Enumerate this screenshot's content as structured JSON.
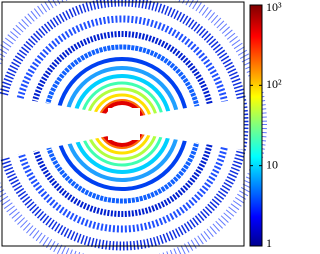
{
  "chart_data": {
    "type": "heatmap",
    "colormap": "jet",
    "colorscale": "log",
    "clim": [
      1,
      1000
    ],
    "cticks": [
      1,
      10,
      {
        "value": 100,
        "label": "10²"
      },
      {
        "value": 1000,
        "label": "10³"
      }
    ]
  }
}
